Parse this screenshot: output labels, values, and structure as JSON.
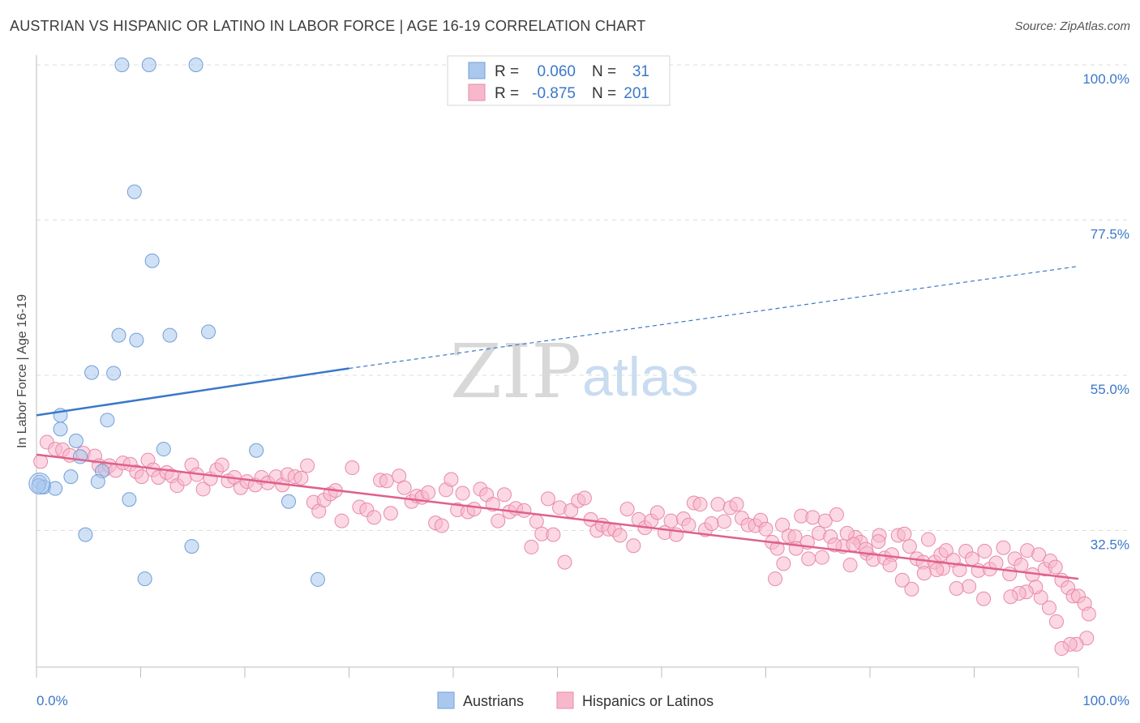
{
  "title": "AUSTRIAN VS HISPANIC OR LATINO IN LABOR FORCE | AGE 16-19 CORRELATION CHART",
  "source": "Source: ZipAtlas.com",
  "watermark": {
    "zip": "ZIP",
    "atlas": "atlas"
  },
  "chart_data": {
    "type": "scatter",
    "xlabel": "",
    "ylabel": "In Labor Force | Age 16-19",
    "xlim": [
      0,
      100
    ],
    "ylim": [
      13,
      102
    ],
    "x_tick_labels": [
      {
        "value": 0,
        "label": "0.0%"
      },
      {
        "value": 100,
        "label": "100.0%"
      }
    ],
    "y_tick_labels": [
      {
        "value": 100,
        "label": "100.0%"
      },
      {
        "value": 77.5,
        "label": "77.5%"
      },
      {
        "value": 55,
        "label": "55.0%"
      },
      {
        "value": 32.5,
        "label": "32.5%"
      }
    ],
    "legend_stats": [
      {
        "r_label": "R =",
        "r_value": "0.060",
        "n_label": "N =",
        "n_value": "31",
        "color": "#aac8ee",
        "stroke": "#6f9fd8"
      },
      {
        "r_label": "R =",
        "r_value": "-0.875",
        "n_label": "N =",
        "n_value": "201",
        "color": "#f7b8cc",
        "stroke": "#e88aa8"
      }
    ],
    "series": [
      {
        "name": "Austrians",
        "color": "#aac8ee",
        "stroke": "#6f9fd8",
        "trend": {
          "x_start": 0,
          "y_start": 49.2,
          "x_solid_end": 30,
          "y_solid_end": 56.0,
          "x_end": 100,
          "y_end": 70.8,
          "color": "#3b78c9"
        },
        "points": [
          [
            8.2,
            100
          ],
          [
            10.8,
            100
          ],
          [
            15.3,
            100
          ],
          [
            9.4,
            81.6
          ],
          [
            11.1,
            71.6
          ],
          [
            7.9,
            60.8
          ],
          [
            9.6,
            60.1
          ],
          [
            12.8,
            60.8
          ],
          [
            16.5,
            61.3
          ],
          [
            5.3,
            55.4
          ],
          [
            7.4,
            55.3
          ],
          [
            2.3,
            49.2
          ],
          [
            6.8,
            48.5
          ],
          [
            2.3,
            47.2
          ],
          [
            3.8,
            45.5
          ],
          [
            12.2,
            44.3
          ],
          [
            21.1,
            44.1
          ],
          [
            4.2,
            43.2
          ],
          [
            6.3,
            41.1
          ],
          [
            3.3,
            40.3
          ],
          [
            5.9,
            39.6
          ],
          [
            0.3,
            39.5
          ],
          [
            0.7,
            38.8
          ],
          [
            1.8,
            38.6
          ],
          [
            8.9,
            37.0
          ],
          [
            24.2,
            36.7
          ],
          [
            4.7,
            31.9
          ],
          [
            14.9,
            30.2
          ],
          [
            10.4,
            25.5
          ],
          [
            27.0,
            25.4
          ],
          [
            0.2,
            39.0
          ]
        ]
      },
      {
        "name": "Hispanics or Latinos",
        "color": "#f7b8cc",
        "stroke": "#e88aa8",
        "trend": {
          "x_start": 0,
          "y_start": 43.5,
          "x_end": 100,
          "y_end": 25.5,
          "color": "#e0608c"
        },
        "points": [
          [
            0.4,
            42.5
          ],
          [
            1.0,
            45.3
          ],
          [
            1.8,
            44.3
          ],
          [
            2.5,
            44.2
          ],
          [
            3.2,
            43.4
          ],
          [
            4.5,
            43.7
          ],
          [
            5.6,
            43.3
          ],
          [
            6.0,
            41.9
          ],
          [
            6.6,
            41.4
          ],
          [
            7.0,
            41.9
          ],
          [
            7.6,
            41.2
          ],
          [
            8.3,
            42.3
          ],
          [
            9.0,
            42.1
          ],
          [
            9.6,
            41.0
          ],
          [
            10.1,
            40.3
          ],
          [
            10.7,
            42.7
          ],
          [
            11.2,
            41.3
          ],
          [
            11.7,
            40.2
          ],
          [
            12.5,
            40.9
          ],
          [
            13.0,
            40.4
          ],
          [
            13.5,
            39.0
          ],
          [
            14.2,
            40.0
          ],
          [
            14.9,
            42.0
          ],
          [
            15.4,
            40.6
          ],
          [
            16.0,
            38.5
          ],
          [
            16.7,
            40.0
          ],
          [
            17.3,
            41.3
          ],
          [
            17.8,
            42.0
          ],
          [
            18.4,
            39.7
          ],
          [
            19.0,
            40.2
          ],
          [
            19.6,
            38.7
          ],
          [
            20.2,
            39.6
          ],
          [
            21.0,
            39.1
          ],
          [
            21.6,
            40.2
          ],
          [
            22.2,
            39.4
          ],
          [
            23.0,
            40.3
          ],
          [
            23.6,
            39.1
          ],
          [
            24.1,
            40.6
          ],
          [
            24.8,
            40.3
          ],
          [
            25.4,
            40.1
          ],
          [
            26.0,
            41.9
          ],
          [
            26.6,
            36.6
          ],
          [
            27.1,
            35.3
          ],
          [
            27.6,
            36.9
          ],
          [
            28.2,
            37.8
          ],
          [
            28.7,
            38.3
          ],
          [
            29.3,
            33.9
          ],
          [
            30.3,
            41.6
          ],
          [
            31.0,
            35.9
          ],
          [
            31.7,
            35.5
          ],
          [
            32.4,
            34.4
          ],
          [
            33.0,
            39.8
          ],
          [
            33.6,
            39.7
          ],
          [
            34.0,
            35.0
          ],
          [
            34.8,
            40.4
          ],
          [
            35.3,
            38.7
          ],
          [
            36.0,
            36.7
          ],
          [
            36.5,
            37.5
          ],
          [
            37.0,
            37.3
          ],
          [
            37.6,
            38.0
          ],
          [
            38.3,
            33.6
          ],
          [
            38.9,
            33.2
          ],
          [
            39.3,
            38.4
          ],
          [
            39.8,
            39.9
          ],
          [
            40.4,
            35.5
          ],
          [
            40.9,
            37.9
          ],
          [
            41.4,
            35.2
          ],
          [
            42.0,
            35.6
          ],
          [
            42.6,
            38.5
          ],
          [
            43.2,
            37.7
          ],
          [
            43.8,
            36.3
          ],
          [
            44.3,
            33.9
          ],
          [
            44.9,
            37.7
          ],
          [
            45.4,
            35.2
          ],
          [
            46.0,
            35.7
          ],
          [
            46.8,
            35.4
          ],
          [
            47.5,
            30.1
          ],
          [
            48.0,
            33.8
          ],
          [
            48.5,
            32.0
          ],
          [
            49.1,
            37.1
          ],
          [
            49.6,
            31.9
          ],
          [
            50.2,
            35.8
          ],
          [
            50.7,
            27.9
          ],
          [
            51.3,
            35.4
          ],
          [
            52.0,
            36.8
          ],
          [
            52.6,
            37.2
          ],
          [
            53.2,
            34.1
          ],
          [
            53.8,
            32.5
          ],
          [
            54.3,
            33.3
          ],
          [
            54.9,
            32.7
          ],
          [
            55.5,
            32.6
          ],
          [
            56.0,
            31.8
          ],
          [
            56.7,
            35.6
          ],
          [
            57.3,
            30.3
          ],
          [
            57.8,
            34.1
          ],
          [
            58.4,
            32.9
          ],
          [
            59.0,
            33.9
          ],
          [
            59.6,
            35.1
          ],
          [
            60.3,
            32.2
          ],
          [
            60.9,
            33.9
          ],
          [
            61.4,
            31.9
          ],
          [
            62.1,
            34.2
          ],
          [
            62.6,
            33.3
          ],
          [
            63.1,
            36.5
          ],
          [
            63.7,
            36.3
          ],
          [
            64.2,
            32.6
          ],
          [
            64.8,
            33.5
          ],
          [
            65.4,
            36.3
          ],
          [
            66.0,
            33.8
          ],
          [
            66.6,
            35.8
          ],
          [
            67.2,
            36.3
          ],
          [
            67.7,
            34.3
          ],
          [
            68.3,
            33.3
          ],
          [
            69.0,
            33.2
          ],
          [
            69.5,
            34.0
          ],
          [
            70.0,
            32.7
          ],
          [
            70.6,
            30.8
          ],
          [
            71.1,
            29.9
          ],
          [
            71.6,
            33.3
          ],
          [
            72.2,
            31.7
          ],
          [
            72.8,
            31.6
          ],
          [
            73.4,
            34.6
          ],
          [
            74.0,
            30.8
          ],
          [
            74.5,
            34.4
          ],
          [
            75.1,
            32.1
          ],
          [
            75.7,
            33.9
          ],
          [
            76.2,
            31.6
          ],
          [
            76.8,
            34.8
          ],
          [
            77.4,
            30.2
          ],
          [
            78.1,
            27.5
          ],
          [
            78.6,
            31.5
          ],
          [
            79.1,
            30.8
          ],
          [
            79.7,
            29.2
          ],
          [
            80.3,
            28.3
          ],
          [
            80.9,
            31.8
          ],
          [
            81.4,
            28.5
          ],
          [
            82.1,
            29.0
          ],
          [
            82.7,
            31.8
          ],
          [
            83.3,
            32.0
          ],
          [
            83.8,
            30.2
          ],
          [
            84.5,
            28.4
          ],
          [
            85.1,
            27.9
          ],
          [
            85.6,
            31.2
          ],
          [
            86.2,
            27.9
          ],
          [
            86.8,
            29.0
          ],
          [
            87.3,
            29.6
          ],
          [
            88.0,
            28.2
          ],
          [
            88.6,
            26.8
          ],
          [
            89.2,
            29.5
          ],
          [
            89.8,
            28.4
          ],
          [
            90.4,
            26.7
          ],
          [
            91.0,
            29.5
          ],
          [
            91.5,
            26.9
          ],
          [
            92.1,
            27.8
          ],
          [
            92.8,
            30.0
          ],
          [
            93.4,
            26.2
          ],
          [
            93.9,
            28.4
          ],
          [
            94.5,
            27.5
          ],
          [
            95.1,
            29.6
          ],
          [
            95.6,
            26.1
          ],
          [
            96.2,
            29.0
          ],
          [
            96.8,
            26.9
          ],
          [
            97.3,
            28.1
          ],
          [
            97.8,
            27.2
          ],
          [
            98.4,
            25.3
          ],
          [
            99.0,
            24.2
          ],
          [
            99.5,
            23.0
          ],
          [
            100.0,
            23.0
          ],
          [
            100.6,
            21.9
          ],
          [
            101.0,
            20.4
          ],
          [
            100.8,
            16.9
          ],
          [
            99.8,
            16.0
          ],
          [
            99.2,
            16.0
          ],
          [
            98.4,
            15.4
          ],
          [
            97.9,
            19.3
          ],
          [
            97.2,
            21.3
          ],
          [
            96.4,
            22.8
          ],
          [
            95.9,
            24.3
          ],
          [
            95.0,
            23.6
          ],
          [
            94.3,
            23.4
          ],
          [
            93.5,
            22.9
          ],
          [
            90.9,
            22.6
          ],
          [
            89.5,
            24.4
          ],
          [
            88.3,
            24.1
          ],
          [
            87.0,
            27.0
          ],
          [
            86.4,
            26.8
          ],
          [
            85.2,
            26.3
          ],
          [
            84.0,
            24.0
          ],
          [
            83.1,
            25.3
          ],
          [
            81.9,
            27.5
          ],
          [
            80.8,
            30.9
          ],
          [
            79.6,
            29.8
          ],
          [
            78.4,
            30.5
          ],
          [
            77.8,
            32.1
          ],
          [
            76.6,
            30.4
          ],
          [
            75.4,
            28.6
          ],
          [
            74.1,
            28.4
          ],
          [
            72.9,
            29.9
          ],
          [
            71.7,
            27.7
          ],
          [
            70.9,
            25.5
          ]
        ]
      }
    ],
    "legend": {
      "placement": "bottom-center",
      "items": [
        "Austrians",
        "Hispanics or Latinos"
      ]
    },
    "grid": true
  }
}
